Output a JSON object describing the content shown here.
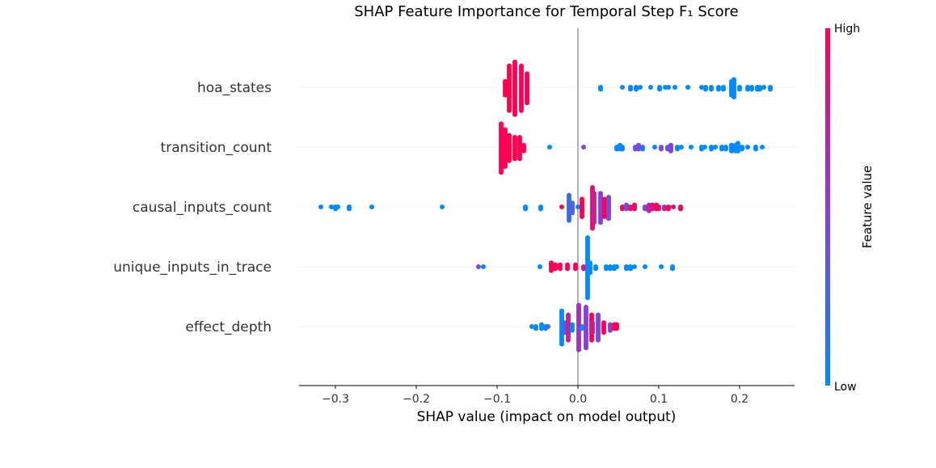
{
  "chart_data": {
    "type": "scatter",
    "subtype": "shap-beeswarm",
    "title": "SHAP Feature Importance for Temporal Step F₁ Score",
    "xlabel": "SHAP value (impact on model output)",
    "xlim": [
      -0.345,
      0.268
    ],
    "xticks": [
      -0.3,
      -0.2,
      -0.1,
      0.0,
      0.1,
      0.2
    ],
    "xtick_labels": [
      "−0.3",
      "−0.2",
      "−0.1",
      "0.0",
      "0.1",
      "0.2"
    ],
    "colorbar": {
      "label": "Feature value",
      "high_label": "High",
      "low_label": "Low",
      "low_color": "#008bfb",
      "mid_color": "#8a3fd6",
      "high_color": "#ff0052"
    },
    "point_format": [
      "shap_value",
      "feature_value_0_to_1",
      "count"
    ],
    "features": [
      {
        "name": "hoa_states",
        "points": [
          [
            -0.09,
            1,
            8
          ],
          [
            -0.085,
            1,
            24
          ],
          [
            -0.078,
            1,
            28
          ],
          [
            -0.07,
            1,
            24
          ],
          [
            -0.063,
            1,
            16
          ],
          [
            0.028,
            0,
            2
          ],
          [
            0.055,
            0,
            1
          ],
          [
            0.065,
            0,
            2
          ],
          [
            0.072,
            0,
            2
          ],
          [
            0.077,
            0,
            1
          ],
          [
            0.09,
            0,
            1
          ],
          [
            0.101,
            0,
            2
          ],
          [
            0.108,
            0,
            1
          ],
          [
            0.112,
            0,
            1
          ],
          [
            0.12,
            0,
            1
          ],
          [
            0.136,
            0,
            1
          ],
          [
            0.153,
            0,
            1
          ],
          [
            0.158,
            0,
            2
          ],
          [
            0.165,
            0,
            2
          ],
          [
            0.174,
            0,
            2
          ],
          [
            0.18,
            0,
            2
          ],
          [
            0.19,
            0,
            8
          ],
          [
            0.193,
            0,
            10
          ],
          [
            0.2,
            0,
            2
          ],
          [
            0.21,
            0,
            2
          ],
          [
            0.215,
            0,
            2
          ],
          [
            0.222,
            0,
            2
          ],
          [
            0.225,
            0,
            2
          ],
          [
            0.23,
            0,
            1
          ],
          [
            0.238,
            0,
            2
          ]
        ]
      },
      {
        "name": "transition_count",
        "points": [
          [
            -0.095,
            1,
            26
          ],
          [
            -0.09,
            1,
            20
          ],
          [
            -0.085,
            1,
            14
          ],
          [
            -0.078,
            1,
            12
          ],
          [
            -0.072,
            1,
            12
          ],
          [
            -0.067,
            1,
            4
          ],
          [
            -0.035,
            0,
            1
          ],
          [
            0.007,
            0.45,
            1
          ],
          [
            0.048,
            0,
            2
          ],
          [
            0.052,
            0,
            3
          ],
          [
            0.055,
            0.1,
            2
          ],
          [
            0.071,
            0.4,
            2
          ],
          [
            0.075,
            0.45,
            3
          ],
          [
            0.08,
            0.1,
            2
          ],
          [
            0.095,
            0,
            1
          ],
          [
            0.103,
            0.45,
            2
          ],
          [
            0.111,
            0.35,
            2
          ],
          [
            0.115,
            0.5,
            4
          ],
          [
            0.123,
            0,
            2
          ],
          [
            0.128,
            0,
            1
          ],
          [
            0.14,
            0,
            1
          ],
          [
            0.153,
            0,
            2
          ],
          [
            0.157,
            0,
            1
          ],
          [
            0.165,
            0,
            2
          ],
          [
            0.17,
            0,
            1
          ],
          [
            0.178,
            0,
            2
          ],
          [
            0.183,
            0,
            2
          ],
          [
            0.19,
            0,
            4
          ],
          [
            0.195,
            0,
            4
          ],
          [
            0.198,
            0,
            5
          ],
          [
            0.203,
            0,
            2
          ],
          [
            0.21,
            0,
            1
          ],
          [
            0.22,
            0,
            2
          ],
          [
            0.228,
            0,
            1
          ]
        ]
      },
      {
        "name": "causal_inputs_count",
        "points": [
          [
            -0.318,
            0,
            1
          ],
          [
            -0.305,
            0,
            1
          ],
          [
            -0.3,
            0,
            2
          ],
          [
            -0.297,
            0,
            1
          ],
          [
            -0.283,
            0,
            2
          ],
          [
            -0.255,
            0,
            1
          ],
          [
            -0.168,
            0,
            1
          ],
          [
            -0.065,
            0,
            2
          ],
          [
            -0.046,
            0,
            2
          ],
          [
            -0.02,
            1,
            1
          ],
          [
            -0.011,
            0.2,
            14
          ],
          [
            -0.007,
            0.3,
            6
          ],
          [
            0.0,
            0,
            1
          ],
          [
            0.005,
            1,
            10
          ],
          [
            0.018,
            0.9,
            22
          ],
          [
            0.02,
            0.75,
            16
          ],
          [
            0.028,
            0.5,
            16
          ],
          [
            0.033,
            1,
            10
          ],
          [
            0.038,
            0.45,
            12
          ],
          [
            0.055,
            1,
            2
          ],
          [
            0.06,
            0.4,
            3
          ],
          [
            0.065,
            0.85,
            2
          ],
          [
            0.07,
            1,
            3
          ],
          [
            0.083,
            0.45,
            2
          ],
          [
            0.088,
            0.7,
            4
          ],
          [
            0.092,
            0.85,
            3
          ],
          [
            0.097,
            1,
            3
          ],
          [
            0.1,
            0.9,
            2
          ],
          [
            0.107,
            0.7,
            2
          ],
          [
            0.112,
            1,
            2
          ],
          [
            0.118,
            0.9,
            1
          ],
          [
            0.127,
            1,
            2
          ]
        ]
      },
      {
        "name": "unique_inputs_in_trace",
        "points": [
          [
            -0.123,
            0.45,
            1
          ],
          [
            -0.117,
            0,
            1
          ],
          [
            -0.047,
            0,
            1
          ],
          [
            -0.033,
            1,
            5
          ],
          [
            -0.028,
            1,
            3
          ],
          [
            -0.022,
            1,
            3
          ],
          [
            -0.013,
            1,
            3
          ],
          [
            -0.003,
            1,
            3
          ],
          [
            0.007,
            0.85,
            2
          ],
          [
            0.012,
            0,
            32
          ],
          [
            0.015,
            0,
            6
          ],
          [
            0.022,
            0,
            2
          ],
          [
            0.035,
            0,
            2
          ],
          [
            0.04,
            0,
            2
          ],
          [
            0.045,
            0,
            2
          ],
          [
            0.048,
            0,
            1
          ],
          [
            0.06,
            0,
            2
          ],
          [
            0.065,
            0,
            2
          ],
          [
            0.07,
            0,
            1
          ],
          [
            0.083,
            0,
            1
          ],
          [
            0.103,
            0,
            1
          ],
          [
            0.117,
            0,
            2
          ]
        ]
      },
      {
        "name": "effect_depth",
        "points": [
          [
            -0.057,
            0,
            1
          ],
          [
            -0.052,
            0,
            2
          ],
          [
            -0.045,
            0,
            3
          ],
          [
            -0.04,
            0,
            2
          ],
          [
            -0.037,
            0.2,
            1
          ],
          [
            -0.02,
            0,
            18
          ],
          [
            -0.016,
            0.3,
            6
          ],
          [
            -0.012,
            0.75,
            14
          ],
          [
            -0.007,
            0,
            4
          ],
          [
            0.001,
            0.6,
            24
          ],
          [
            0.005,
            0,
            2
          ],
          [
            0.01,
            0.5,
            22
          ],
          [
            0.017,
            1,
            14
          ],
          [
            0.018,
            0.8,
            6
          ],
          [
            0.025,
            0.45,
            14
          ],
          [
            0.032,
            1,
            6
          ],
          [
            0.04,
            0.55,
            4
          ],
          [
            0.045,
            1,
            3
          ],
          [
            0.048,
            1,
            3
          ]
        ]
      }
    ]
  }
}
